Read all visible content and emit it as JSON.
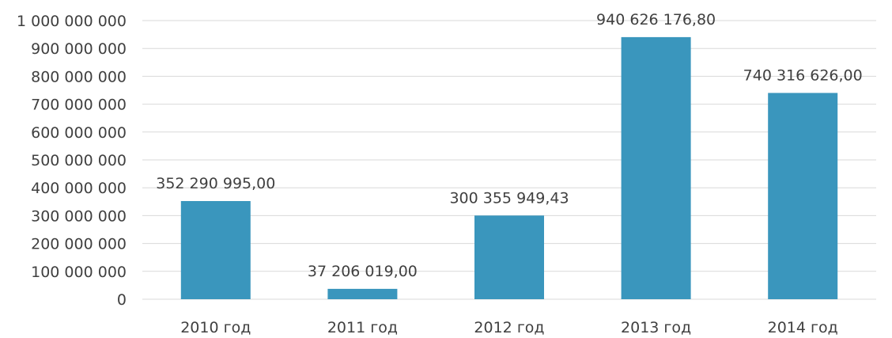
{
  "chart_data": {
    "type": "bar",
    "categories": [
      "2010 год",
      "2011 год",
      "2012 год",
      "2013 год",
      "2014 год"
    ],
    "values": [
      352290995.0,
      37206019.0,
      300355949.43,
      940626176.8,
      740316626.0
    ],
    "value_labels": [
      "352 290 995,00",
      "37 206 019,00",
      "300 355 949,43",
      "940 626 176,80",
      "740 316 626,00"
    ],
    "ylim": [
      0,
      1000000000
    ],
    "yticks": [
      0,
      100000000,
      200000000,
      300000000,
      400000000,
      500000000,
      600000000,
      700000000,
      800000000,
      900000000,
      1000000000
    ],
    "ytick_labels": [
      "0",
      "100 000 000",
      "200 000 000",
      "300 000 000",
      "400 000 000",
      "500 000 000",
      "600 000 000",
      "700 000 000",
      "800 000 000",
      "900 000 000",
      "1 000 000 000"
    ],
    "grid": true,
    "legend": "none",
    "bar_color": "#3a96bd",
    "title": "",
    "xlabel": "",
    "ylabel": ""
  }
}
